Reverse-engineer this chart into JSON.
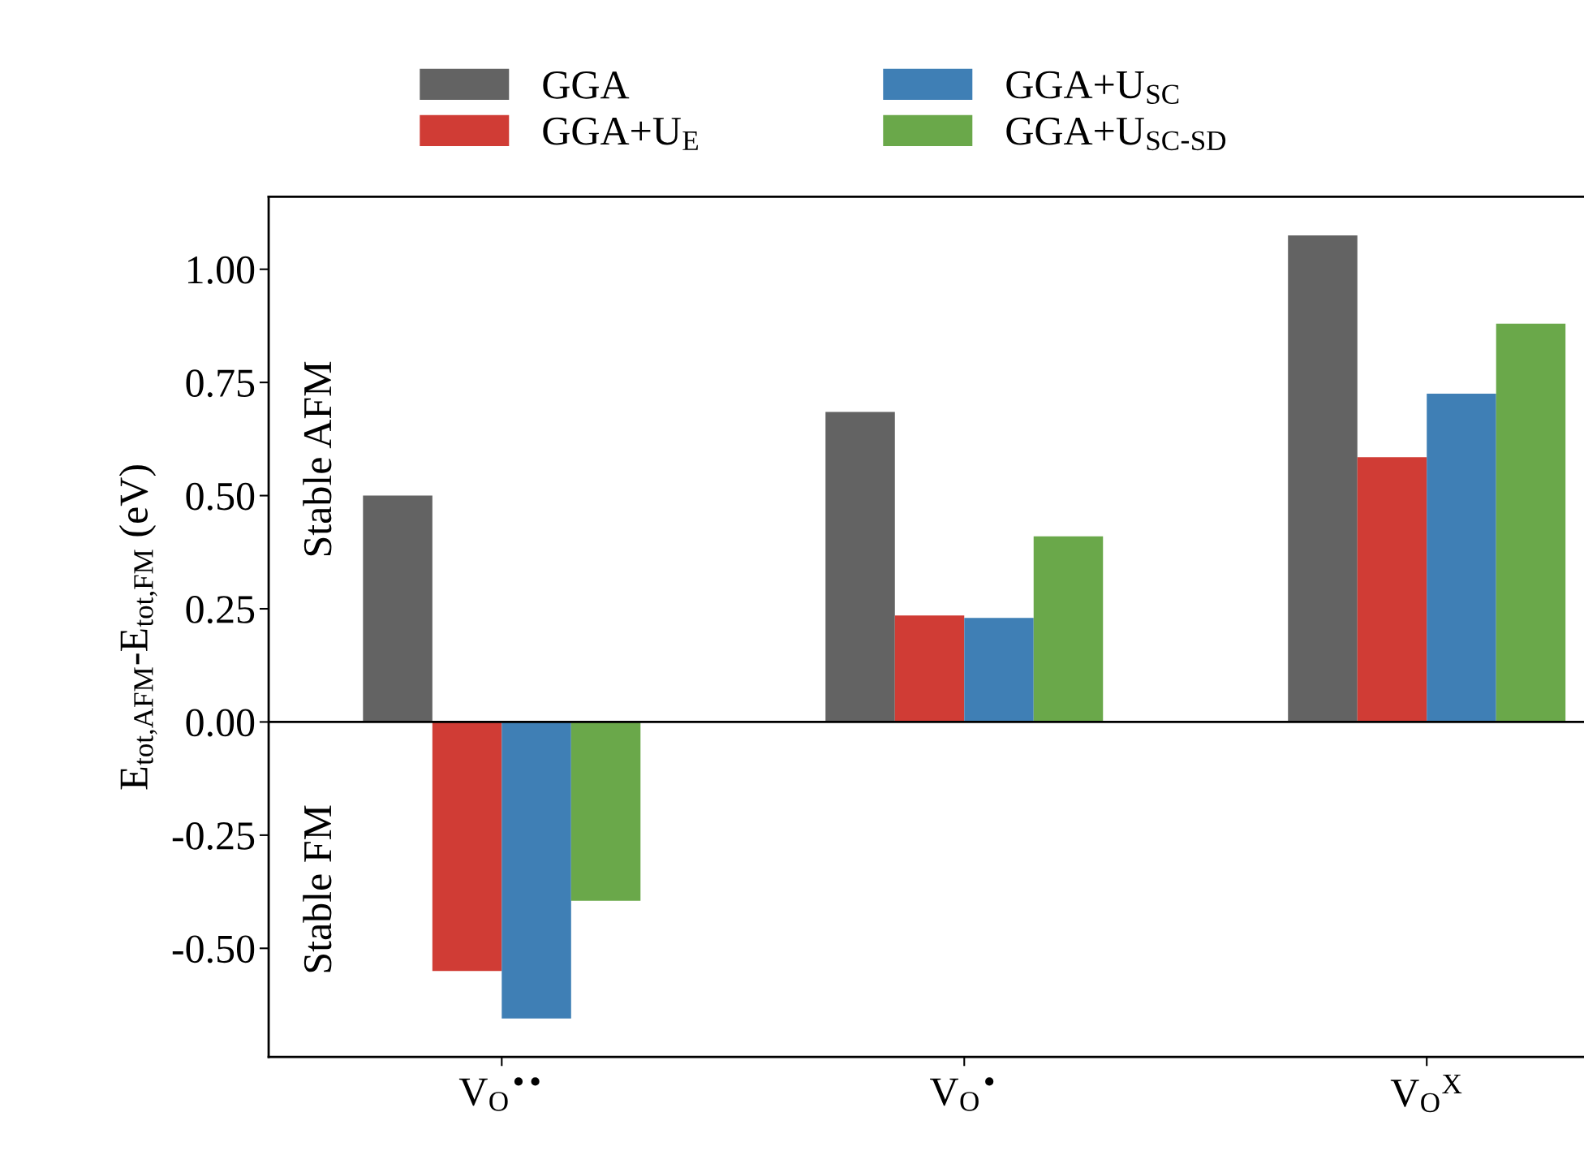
{
  "chart_data": {
    "type": "bar",
    "categories": [
      "V$_{O}$$^{••}$",
      "V$_{O}$$^{•}$",
      "V$_{O}$$^{X}$"
    ],
    "ylabel": "E$_{tot,AFM}$-E$_{tot,FM}$ (eV)",
    "series": [
      {
        "name": "GGA",
        "color": "#636363",
        "values": [
          0.5,
          0.685,
          1.075
        ]
      },
      {
        "name": "GGA+U$_{E}$",
        "color": "#d03c35",
        "values": [
          -0.55,
          0.235,
          0.585
        ]
      },
      {
        "name": "GGA+U$_{SC}$",
        "color": "#3f7fb5",
        "values": [
          -0.655,
          0.23,
          0.725
        ]
      },
      {
        "name": "GGA+U$_{SC-SD}$",
        "color": "#6aa84a",
        "values": [
          -0.395,
          0.41,
          0.88
        ]
      }
    ],
    "ylim": [
      -0.74,
      1.16
    ],
    "yticks": [
      {
        "value": -0.5,
        "label": "-0.50"
      },
      {
        "value": -0.25,
        "label": "-0.25"
      },
      {
        "value": 0,
        "label": "0.00"
      },
      {
        "value": 0.25,
        "label": "0.25"
      },
      {
        "value": 0.5,
        "label": "0.50"
      },
      {
        "value": 0.75,
        "label": "0.75"
      },
      {
        "value": 1.0,
        "label": "1.00"
      }
    ],
    "ref_lines": [
      {
        "axis": "y",
        "value": 0,
        "color": "#000000"
      }
    ],
    "annotations": [
      "Stable AFM",
      "Stable FM"
    ],
    "legend": "top",
    "grid": false
  }
}
